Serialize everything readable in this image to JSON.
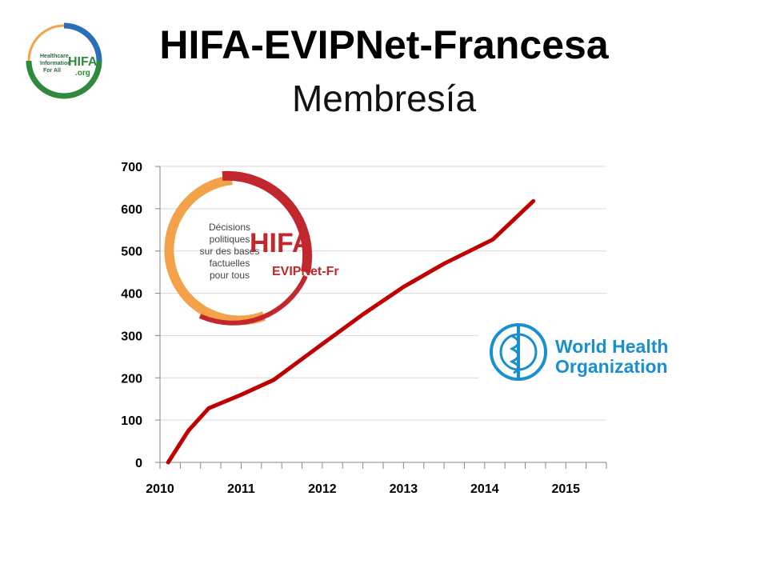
{
  "header": {
    "title": "HIFA-EVIPNet-Francesa",
    "subtitle": "Membresía"
  },
  "logos": {
    "hifa_org": {
      "line1": "Healthcare",
      "line2": "Information",
      "line3": "For All",
      "brand": "HIFA",
      "suffix": ".org"
    },
    "hifa_evipnet": {
      "text1": "Décisions",
      "text2": "politiques",
      "text3": "sur des bases",
      "text4": "factuelles",
      "text5": "pour tous",
      "brand": "HIFA",
      "sub": "EVIPNet-Fr"
    },
    "who": {
      "line1": "World Health",
      "line2": "Organization"
    }
  },
  "colors": {
    "line": "#c00000",
    "who_blue": "#1a8fd0",
    "hifa_red": "#c0282d",
    "hifa_orange": "#f4a24a",
    "hifa_green": "#2e8b3e",
    "hifa_blue": "#2a6fb8"
  },
  "chart_data": {
    "type": "line",
    "title": "",
    "xlabel": "",
    "ylabel": "",
    "x_ticks": [
      "2010",
      "2011",
      "2012",
      "2013",
      "2014",
      "2015"
    ],
    "y_ticks": [
      "0",
      "100",
      "200",
      "300",
      "400",
      "500",
      "600",
      "700"
    ],
    "xlim": [
      2010,
      2015.5
    ],
    "ylim": [
      0,
      700
    ],
    "grid": true,
    "series": [
      {
        "x": [
          2010.1,
          2010.35,
          2010.6,
          2011.0,
          2011.4,
          2012.0,
          2012.5,
          2013.0,
          2013.5,
          2014.1,
          2014.6
        ],
        "y": [
          0,
          75,
          128,
          160,
          195,
          280,
          350,
          415,
          470,
          527,
          618
        ]
      }
    ]
  }
}
